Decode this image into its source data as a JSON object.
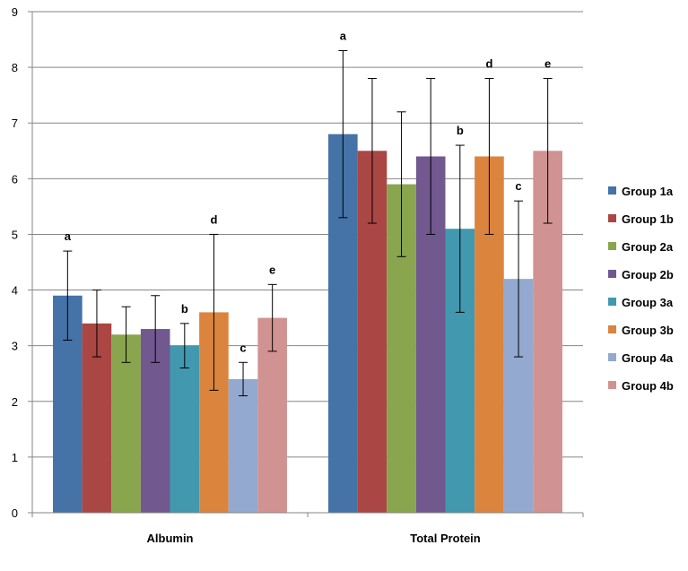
{
  "chart_data": {
    "type": "bar",
    "categories": [
      "Albumin",
      "Total Protein"
    ],
    "ylim": [
      0,
      9
    ],
    "yticks": [
      0,
      1,
      2,
      3,
      4,
      5,
      6,
      7,
      8,
      9
    ],
    "grid": true,
    "legend_position": "right",
    "series": [
      {
        "name": "Group 1a",
        "color": "#4572A7",
        "values": [
          3.9,
          6.8
        ],
        "err_low": [
          3.1,
          5.3
        ],
        "err_high": [
          4.7,
          8.3
        ],
        "annotations": [
          "a",
          "a"
        ]
      },
      {
        "name": "Group 1b",
        "color": "#AA4643",
        "values": [
          3.4,
          6.5
        ],
        "err_low": [
          2.8,
          5.2
        ],
        "err_high": [
          4.0,
          7.8
        ],
        "annotations": [
          "",
          ""
        ]
      },
      {
        "name": "Group 2a",
        "color": "#89A54E",
        "values": [
          3.2,
          5.9
        ],
        "err_low": [
          2.7,
          4.6
        ],
        "err_high": [
          3.7,
          7.2
        ],
        "annotations": [
          "",
          ""
        ]
      },
      {
        "name": "Group 2b",
        "color": "#71588F",
        "values": [
          3.3,
          6.4
        ],
        "err_low": [
          2.7,
          5.0
        ],
        "err_high": [
          3.9,
          7.8
        ],
        "annotations": [
          "",
          ""
        ]
      },
      {
        "name": "Group 3a",
        "color": "#4198AF",
        "values": [
          3.0,
          5.1
        ],
        "err_low": [
          2.6,
          3.6
        ],
        "err_high": [
          3.4,
          6.6
        ],
        "annotations": [
          "b",
          "b"
        ]
      },
      {
        "name": "Group 3b",
        "color": "#DB843D",
        "values": [
          3.6,
          6.4
        ],
        "err_low": [
          2.2,
          5.0
        ],
        "err_high": [
          5.0,
          7.8
        ],
        "annotations": [
          "d",
          "d"
        ]
      },
      {
        "name": "Group 4a",
        "color": "#93A9CF",
        "values": [
          2.4,
          4.2
        ],
        "err_low": [
          2.1,
          2.8
        ],
        "err_high": [
          2.7,
          5.6
        ],
        "annotations": [
          "c",
          "c"
        ]
      },
      {
        "name": "Group 4b",
        "color": "#D19392",
        "values": [
          3.5,
          6.5
        ],
        "err_low": [
          2.9,
          5.2
        ],
        "err_high": [
          4.1,
          7.8
        ],
        "annotations": [
          "e",
          "e"
        ]
      }
    ]
  }
}
